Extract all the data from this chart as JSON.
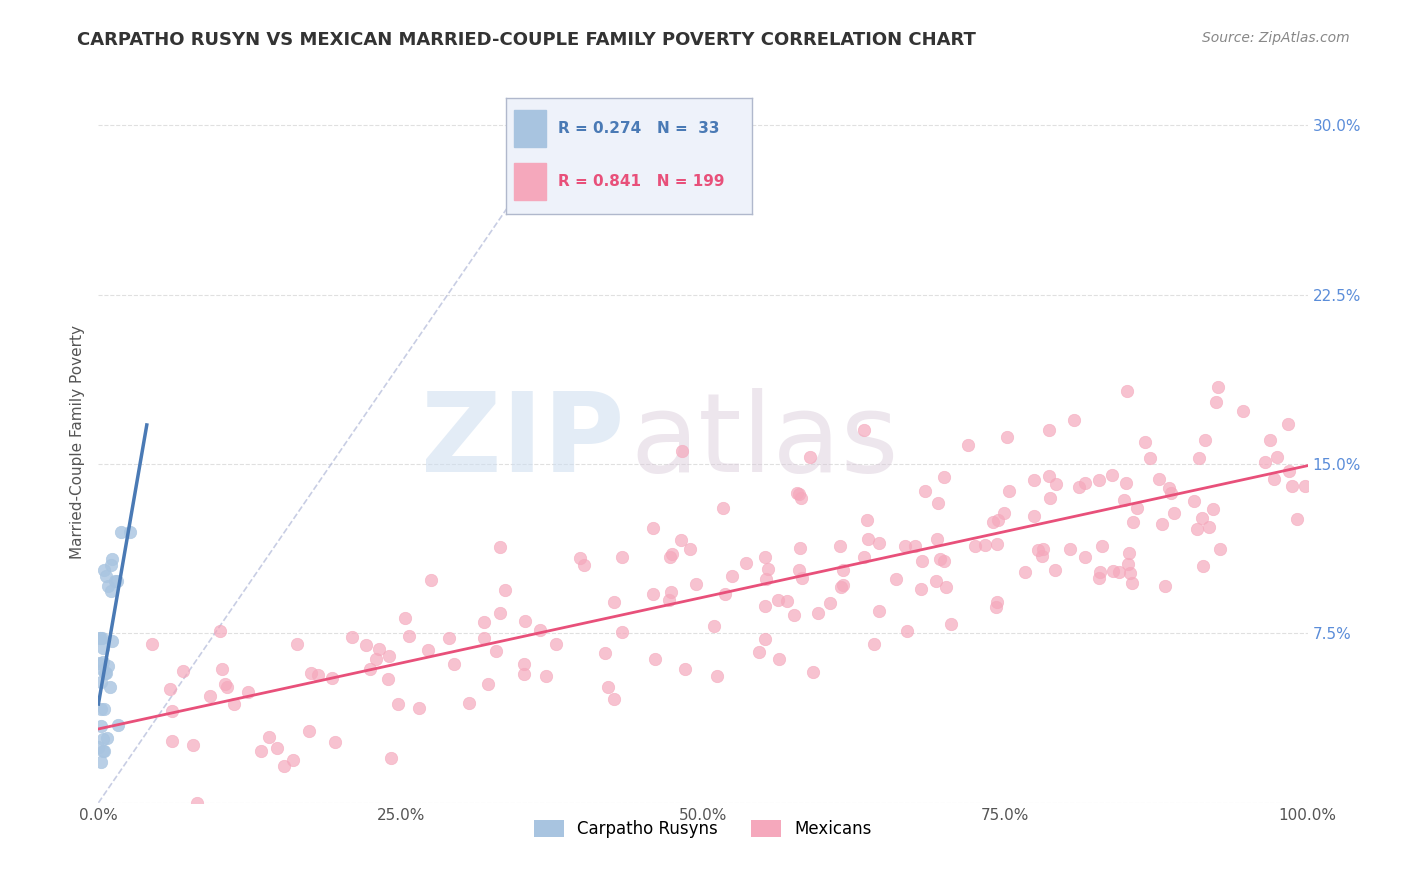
{
  "title": "CARPATHO RUSYN VS MEXICAN MARRIED-COUPLE FAMILY POVERTY CORRELATION CHART",
  "source": "Source: ZipAtlas.com",
  "ylabel": "Married-Couple Family Poverty",
  "legend_labels": [
    "Carpatho Rusyns",
    "Mexicans"
  ],
  "blue_R": 0.274,
  "blue_N": 33,
  "pink_R": 0.841,
  "pink_N": 199,
  "blue_color": "#a8c4e0",
  "pink_color": "#f5a8bc",
  "blue_line_color": "#4a7ab5",
  "pink_line_color": "#e8507a",
  "watermark_zip": "ZIP",
  "watermark_atlas": "atlas",
  "background_color": "#ffffff",
  "grid_color": "#e0e0e0",
  "xlim": [
    0.0,
    1.0
  ],
  "ylim": [
    0.0,
    0.32
  ],
  "xticks": [
    0.0,
    0.25,
    0.5,
    0.75,
    1.0
  ],
  "xtick_labels": [
    "0.0%",
    "25.0%",
    "50.0%",
    "75.0%",
    "100.0%"
  ],
  "yticks": [
    0.0,
    0.075,
    0.15,
    0.225,
    0.3
  ],
  "ytick_labels": [
    "",
    "7.5%",
    "15.0%",
    "22.5%",
    "30.0%"
  ],
  "ytick_color": "#5b8dd9",
  "title_color": "#333333",
  "source_color": "#888888"
}
